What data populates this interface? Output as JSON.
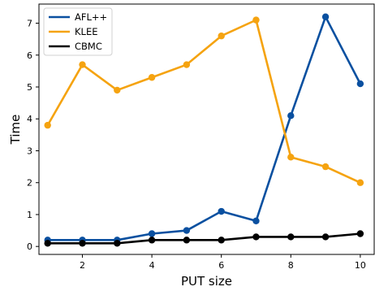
{
  "chart_data": {
    "type": "line",
    "xlabel": "PUT size",
    "ylabel": "Time",
    "xlim": [
      0.75,
      10.4
    ],
    "ylim": [
      -0.25,
      7.6
    ],
    "x_ticks": [
      2,
      4,
      6,
      8,
      10
    ],
    "y_ticks": [
      0,
      1,
      2,
      3,
      4,
      5,
      6,
      7
    ],
    "grid": false,
    "legend": "top-left",
    "x": [
      1,
      2,
      3,
      4,
      5,
      6,
      7,
      8,
      9,
      10
    ],
    "series": [
      {
        "name": "AFL++",
        "color": "#0a50a0",
        "values": [
          0.2,
          0.2,
          0.2,
          0.4,
          0.5,
          1.1,
          0.8,
          4.1,
          7.2,
          5.1
        ]
      },
      {
        "name": "KLEE",
        "color": "#f5a310",
        "values": [
          3.8,
          5.7,
          4.9,
          5.3,
          5.7,
          6.6,
          7.1,
          2.8,
          2.5,
          2.0
        ]
      },
      {
        "name": "CBMC",
        "color": "#000000",
        "values": [
          0.1,
          0.1,
          0.1,
          0.2,
          0.2,
          0.2,
          0.3,
          0.3,
          0.3,
          0.4
        ]
      }
    ]
  }
}
